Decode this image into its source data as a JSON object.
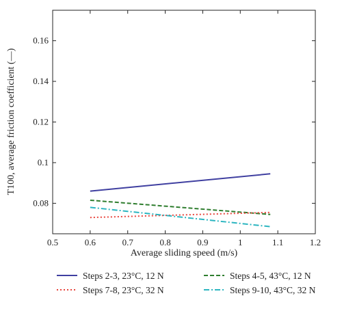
{
  "chart_data": {
    "type": "line",
    "xlabel": "Average sliding speed (m/s)",
    "ylabel": "T100, average friction coefficient (—)",
    "xlim": [
      0.5,
      1.2
    ],
    "ylim": [
      0.065,
      0.175
    ],
    "xticks": [
      0.5,
      0.6,
      0.7,
      0.8,
      0.9,
      1,
      1.1,
      1.2
    ],
    "xtick_labels": [
      "0.5",
      "0.6",
      "0.7",
      "0.8",
      "0.9",
      "1",
      "1.1",
      "1.2"
    ],
    "yticks": [
      0.08,
      0.1,
      0.12,
      0.14,
      0.16
    ],
    "ytick_labels": [
      "0.08",
      "0.1",
      "0.12",
      "0.14",
      "0.16"
    ],
    "grid": false,
    "legend_position": "bottom",
    "series": [
      {
        "name": "Steps 2-3, 23°C, 12 N",
        "x": [
          0.6,
          1.08
        ],
        "y": [
          0.086,
          0.0945
        ],
        "color": "#3f3fa0",
        "dash": "solid"
      },
      {
        "name": "Steps 4-5, 43°C, 12 N",
        "x": [
          0.6,
          1.08
        ],
        "y": [
          0.0815,
          0.0745
        ],
        "color": "#2e7d2e",
        "dash": "dashed"
      },
      {
        "name": "Steps 7-8, 23°C, 32 N",
        "x": [
          0.6,
          1.08
        ],
        "y": [
          0.073,
          0.0755
        ],
        "color": "#e8423a",
        "dash": "dotted"
      },
      {
        "name": "Steps 9-10, 43°C, 32 N",
        "x": [
          0.6,
          1.08
        ],
        "y": [
          0.078,
          0.0685
        ],
        "color": "#2bb5c0",
        "dash": "dashdot"
      }
    ]
  }
}
